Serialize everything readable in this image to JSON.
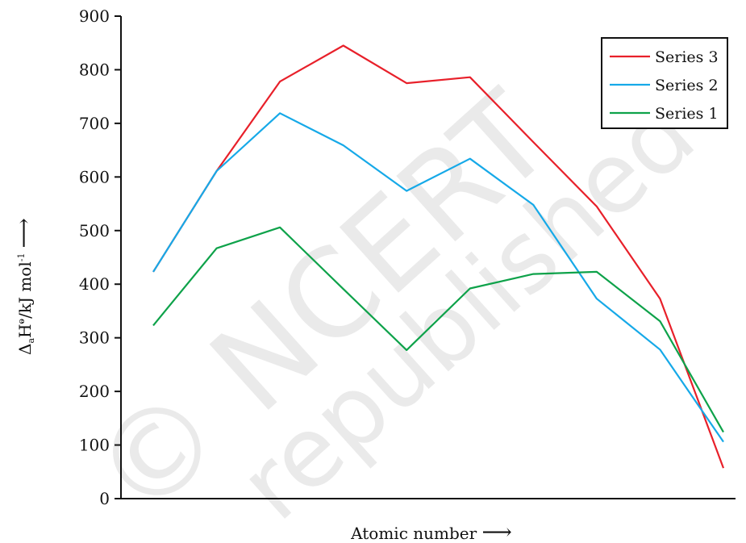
{
  "chart_data": {
    "type": "line",
    "title": "",
    "xlabel": "Atomic number",
    "xlabel_arrow": "⟶",
    "ylabel_html": "Δ<tspan font-size='11' dy='4'>a</tspan><tspan dy='-4'>H</tspan><tspan font-size='11' dy='-8'>ⱺ</tspan><tspan dy='8'>/kJ mol</tspan><tspan font-size='11' dy='-8'>-1</tspan>",
    "ylabel_arrow": "⟶",
    "ylim": [
      0,
      900
    ],
    "yticks": [
      0,
      100,
      200,
      300,
      400,
      500,
      600,
      700,
      800,
      900
    ],
    "grid": false,
    "legend_position": "top-right",
    "x": [
      1,
      2,
      3,
      4,
      5,
      6,
      7,
      8,
      9,
      10
    ],
    "series": [
      {
        "name": "Series 3",
        "color": "#e8202a",
        "values": [
          423,
          611,
          778,
          845,
          775,
          786,
          665,
          545,
          373,
          57
        ]
      },
      {
        "name": "Series 2",
        "color": "#16a9e8",
        "values": [
          423,
          611,
          719,
          659,
          574,
          634,
          548,
          373,
          278,
          106
        ]
      },
      {
        "name": "Series 1",
        "color": "#0ea24a",
        "values": [
          323,
          467,
          506,
          391,
          277,
          392,
          419,
          423,
          331,
          124
        ]
      }
    ]
  },
  "watermark": {
    "line1": "© NCERT",
    "line2": "republished"
  }
}
